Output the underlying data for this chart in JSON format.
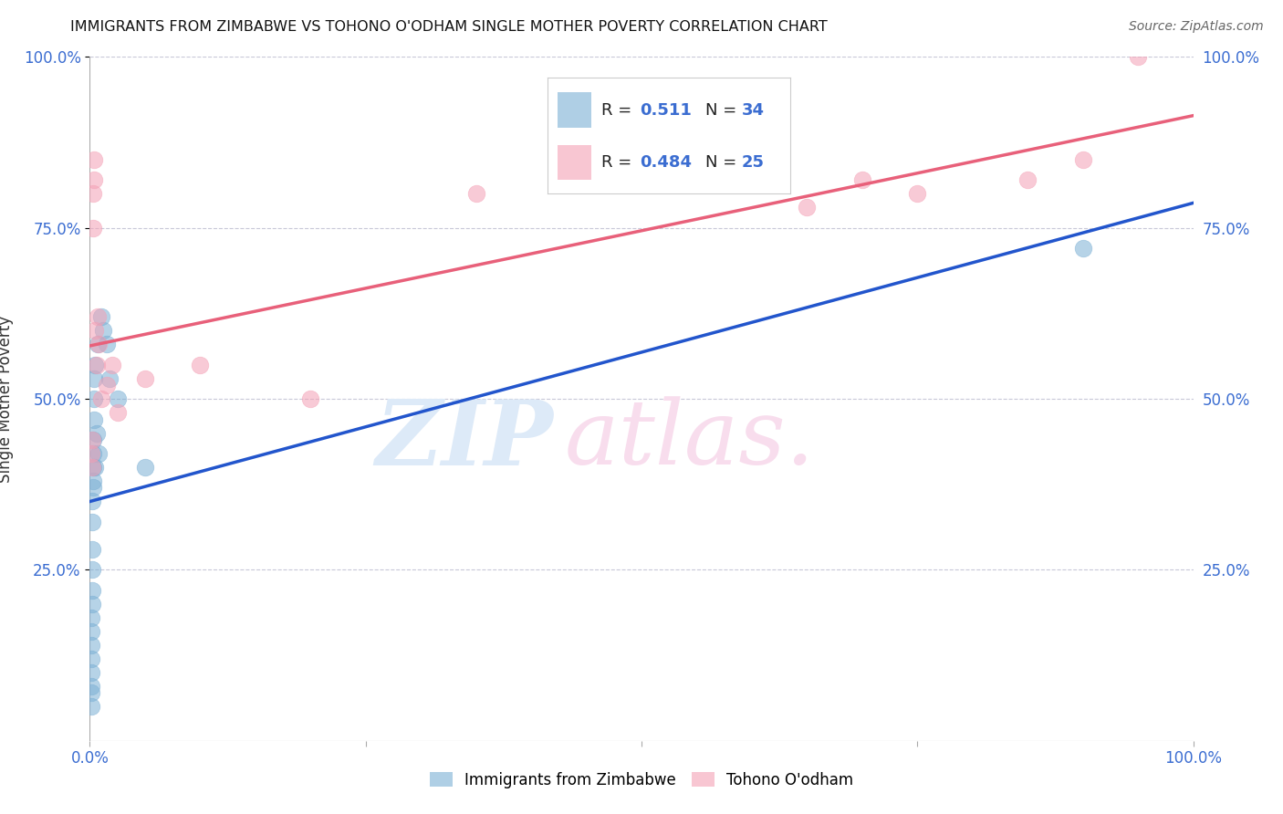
{
  "title": "IMMIGRANTS FROM ZIMBABWE VS TOHONO O'ODHAM SINGLE MOTHER POVERTY CORRELATION CHART",
  "source": "Source: ZipAtlas.com",
  "ylabel": "Single Mother Poverty",
  "blue_color": "#7BAFD4",
  "pink_color": "#F4A0B5",
  "blue_line_color": "#2255CC",
  "pink_line_color": "#E8607A",
  "legend_R_blue": "0.511",
  "legend_N_blue": "34",
  "legend_R_pink": "0.484",
  "legend_N_pink": "25",
  "grid_color": "#C8C8D8",
  "background_color": "#FFFFFF",
  "blue_scatter_x": [
    0.001,
    0.001,
    0.001,
    0.001,
    0.001,
    0.001,
    0.001,
    0.001,
    0.002,
    0.002,
    0.002,
    0.002,
    0.002,
    0.002,
    0.003,
    0.003,
    0.003,
    0.003,
    0.003,
    0.004,
    0.004,
    0.004,
    0.005,
    0.005,
    0.006,
    0.007,
    0.008,
    0.01,
    0.012,
    0.015,
    0.018,
    0.025,
    0.05,
    0.9
  ],
  "blue_scatter_y": [
    0.05,
    0.07,
    0.08,
    0.1,
    0.12,
    0.14,
    0.16,
    0.18,
    0.2,
    0.22,
    0.25,
    0.28,
    0.32,
    0.35,
    0.37,
    0.38,
    0.4,
    0.42,
    0.44,
    0.47,
    0.5,
    0.53,
    0.4,
    0.55,
    0.45,
    0.58,
    0.42,
    0.62,
    0.6,
    0.58,
    0.53,
    0.5,
    0.4,
    0.72
  ],
  "pink_scatter_x": [
    0.001,
    0.002,
    0.002,
    0.003,
    0.003,
    0.004,
    0.004,
    0.005,
    0.006,
    0.007,
    0.008,
    0.01,
    0.015,
    0.02,
    0.025,
    0.05,
    0.1,
    0.2,
    0.35,
    0.65,
    0.7,
    0.75,
    0.85,
    0.9,
    0.95
  ],
  "pink_scatter_y": [
    0.42,
    0.4,
    0.44,
    0.75,
    0.8,
    0.82,
    0.85,
    0.6,
    0.55,
    0.62,
    0.58,
    0.5,
    0.52,
    0.55,
    0.48,
    0.53,
    0.55,
    0.5,
    0.8,
    0.78,
    0.82,
    0.8,
    0.82,
    0.85,
    1.0
  ]
}
